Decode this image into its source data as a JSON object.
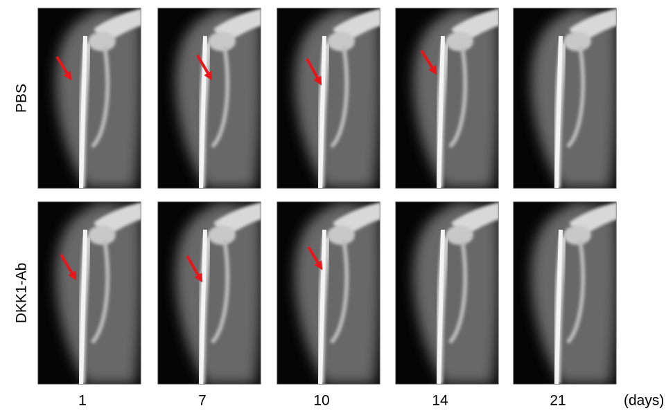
{
  "rows": [
    {
      "label": "PBS"
    },
    {
      "label": "DKK1-Ab"
    }
  ],
  "columns": [
    "1",
    "7",
    "10",
    "14",
    "21"
  ],
  "unit": "(days)"
}
